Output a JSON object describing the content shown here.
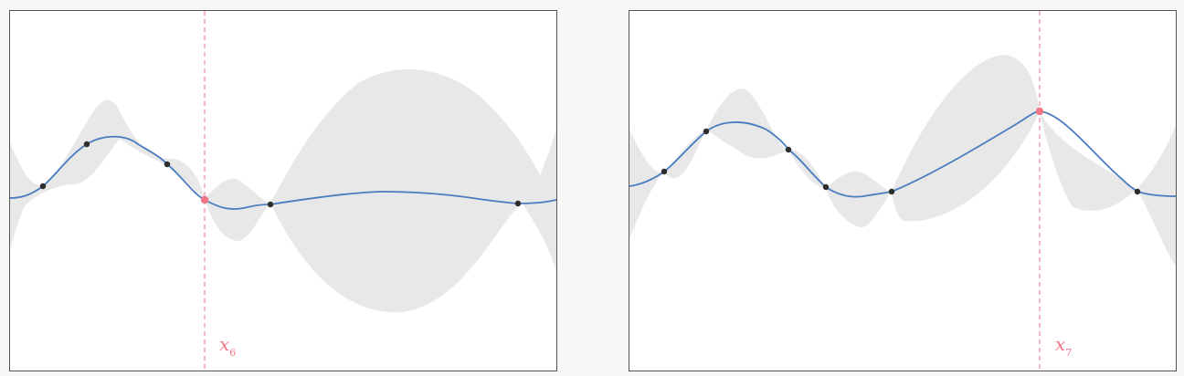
{
  "colors": {
    "background": "#f7f7f6",
    "panel": "#ffffff",
    "band": "#e8e8e8",
    "mean": "#4a7cc0",
    "observation": "#2c2c2c",
    "query": "#f07585"
  },
  "panels": [
    {
      "query_label": {
        "symbol": "x",
        "subscript": "6"
      },
      "query_x": 0.356,
      "observations_x": [
        0.057,
        0.137,
        0.287,
        0.477,
        0.93
      ],
      "band_lengthscale": 0.055
    },
    {
      "query_label": {
        "symbol": "x",
        "subscript": "7"
      },
      "query_x": 0.75,
      "observations_x": [
        0.06,
        0.14,
        0.29,
        0.36,
        0.48,
        0.93
      ],
      "band_lengthscale": 0.055
    }
  ]
}
